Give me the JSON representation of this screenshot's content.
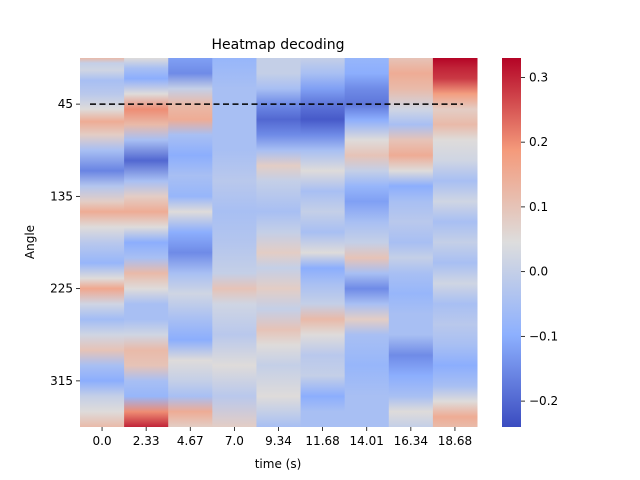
{
  "chart_data": {
    "type": "heatmap",
    "title": "Heatmap decoding",
    "xlabel": "time (s)",
    "ylabel": "Angle",
    "x_ticks": [
      "0.0",
      "2.33",
      "4.67",
      "7.0",
      "9.34",
      "11.68",
      "14.01",
      "16.34",
      "18.68"
    ],
    "y_range": [
      0,
      360
    ],
    "y_ticks": [
      45,
      135,
      225,
      315
    ],
    "y_tick_labels": [
      "45",
      "135",
      "225",
      "315"
    ],
    "hline": {
      "y": 45,
      "style": "dashed",
      "color": "#000000"
    },
    "colormap": "coolwarm",
    "color_range": [
      -0.24,
      0.33
    ],
    "colorbar_ticks": [
      -0.2,
      -0.1,
      0.0,
      0.1,
      0.2,
      0.3
    ],
    "colorbar_tick_labels": [
      "−0.2",
      "−0.1",
      "0.0",
      "0.1",
      "0.2",
      "0.3"
    ],
    "columns": [
      {
        "x": "0.0",
        "profile": [
          [
            0,
            0.12
          ],
          [
            5,
            0.0
          ],
          [
            12,
            0.02
          ],
          [
            22,
            -0.05
          ],
          [
            35,
            -0.02
          ],
          [
            50,
            0.05
          ],
          [
            62,
            0.15
          ],
          [
            75,
            0.08
          ],
          [
            90,
            -0.05
          ],
          [
            110,
            -0.16
          ],
          [
            125,
            -0.03
          ],
          [
            140,
            0.08
          ],
          [
            150,
            0.15
          ],
          [
            165,
            0.05
          ],
          [
            180,
            -0.02
          ],
          [
            200,
            -0.08
          ],
          [
            215,
            0.05
          ],
          [
            225,
            0.16
          ],
          [
            240,
            0.02
          ],
          [
            255,
            -0.06
          ],
          [
            270,
            0.02
          ],
          [
            285,
            0.1
          ],
          [
            300,
            -0.05
          ],
          [
            315,
            -0.1
          ],
          [
            330,
            0.0
          ],
          [
            345,
            0.05
          ],
          [
            360,
            0.12
          ]
        ]
      },
      {
        "x": "2.33",
        "profile": [
          [
            0,
            0.05
          ],
          [
            10,
            -0.05
          ],
          [
            20,
            -0.1
          ],
          [
            35,
            0.05
          ],
          [
            50,
            0.2
          ],
          [
            65,
            0.12
          ],
          [
            80,
            -0.05
          ],
          [
            100,
            -0.2
          ],
          [
            120,
            -0.05
          ],
          [
            135,
            0.08
          ],
          [
            150,
            0.15
          ],
          [
            165,
            0.05
          ],
          [
            180,
            -0.1
          ],
          [
            195,
            -0.05
          ],
          [
            210,
            0.12
          ],
          [
            225,
            0.05
          ],
          [
            240,
            -0.05
          ],
          [
            255,
            -0.05
          ],
          [
            270,
            0.02
          ],
          [
            285,
            0.12
          ],
          [
            300,
            0.1
          ],
          [
            315,
            -0.05
          ],
          [
            330,
            -0.08
          ],
          [
            345,
            0.2
          ],
          [
            360,
            0.3
          ]
        ]
      },
      {
        "x": "4.67",
        "profile": [
          [
            0,
            -0.12
          ],
          [
            15,
            -0.15
          ],
          [
            30,
            0.0
          ],
          [
            45,
            0.12
          ],
          [
            60,
            0.15
          ],
          [
            75,
            -0.05
          ],
          [
            95,
            -0.1
          ],
          [
            115,
            -0.05
          ],
          [
            135,
            -0.08
          ],
          [
            150,
            0.05
          ],
          [
            170,
            -0.1
          ],
          [
            190,
            -0.15
          ],
          [
            210,
            -0.05
          ],
          [
            230,
            0.02
          ],
          [
            255,
            -0.05
          ],
          [
            275,
            -0.1
          ],
          [
            295,
            0.05
          ],
          [
            315,
            0.0
          ],
          [
            330,
            -0.05
          ],
          [
            345,
            0.15
          ],
          [
            360,
            0.08
          ]
        ]
      },
      {
        "x": "7.0",
        "profile": [
          [
            0,
            -0.08
          ],
          [
            30,
            -0.05
          ],
          [
            60,
            -0.05
          ],
          [
            90,
            -0.05
          ],
          [
            120,
            -0.02
          ],
          [
            150,
            -0.05
          ],
          [
            180,
            -0.03
          ],
          [
            210,
            0.0
          ],
          [
            225,
            0.1
          ],
          [
            240,
            0.02
          ],
          [
            270,
            -0.02
          ],
          [
            300,
            0.05
          ],
          [
            330,
            -0.02
          ],
          [
            360,
            0.08
          ]
        ]
      },
      {
        "x": "9.34",
        "profile": [
          [
            0,
            0.0
          ],
          [
            15,
            0.0
          ],
          [
            30,
            -0.05
          ],
          [
            45,
            -0.15
          ],
          [
            60,
            -0.2
          ],
          [
            75,
            -0.15
          ],
          [
            90,
            -0.05
          ],
          [
            105,
            0.08
          ],
          [
            120,
            0.0
          ],
          [
            150,
            -0.05
          ],
          [
            170,
            0.0
          ],
          [
            190,
            0.08
          ],
          [
            205,
            0.0
          ],
          [
            225,
            0.08
          ],
          [
            245,
            0.0
          ],
          [
            265,
            0.1
          ],
          [
            280,
            0.05
          ],
          [
            300,
            0.0
          ],
          [
            330,
            0.05
          ],
          [
            345,
            0.0
          ],
          [
            360,
            -0.05
          ]
        ]
      },
      {
        "x": "11.68",
        "profile": [
          [
            0,
            0.0
          ],
          [
            15,
            -0.05
          ],
          [
            30,
            -0.12
          ],
          [
            45,
            -0.18
          ],
          [
            60,
            -0.22
          ],
          [
            75,
            -0.15
          ],
          [
            90,
            -0.05
          ],
          [
            110,
            0.05
          ],
          [
            130,
            -0.05
          ],
          [
            150,
            0.0
          ],
          [
            170,
            -0.05
          ],
          [
            190,
            0.05
          ],
          [
            205,
            -0.1
          ],
          [
            220,
            -0.05
          ],
          [
            240,
            0.0
          ],
          [
            255,
            0.12
          ],
          [
            270,
            0.05
          ],
          [
            290,
            -0.02
          ],
          [
            310,
            0.0
          ],
          [
            330,
            -0.1
          ],
          [
            345,
            -0.05
          ],
          [
            360,
            -0.05
          ]
        ]
      },
      {
        "x": "14.01",
        "profile": [
          [
            0,
            -0.08
          ],
          [
            15,
            -0.1
          ],
          [
            30,
            -0.15
          ],
          [
            45,
            -0.18
          ],
          [
            60,
            -0.1
          ],
          [
            80,
            0.05
          ],
          [
            95,
            0.1
          ],
          [
            110,
            0.0
          ],
          [
            125,
            -0.08
          ],
          [
            140,
            -0.12
          ],
          [
            160,
            -0.05
          ],
          [
            180,
            0.0
          ],
          [
            195,
            0.1
          ],
          [
            210,
            -0.05
          ],
          [
            225,
            -0.15
          ],
          [
            240,
            -0.05
          ],
          [
            255,
            0.08
          ],
          [
            270,
            -0.05
          ],
          [
            300,
            -0.08
          ],
          [
            330,
            -0.05
          ],
          [
            360,
            -0.05
          ]
        ]
      },
      {
        "x": "16.34",
        "profile": [
          [
            0,
            0.1
          ],
          [
            15,
            0.15
          ],
          [
            30,
            0.12
          ],
          [
            50,
            0.02
          ],
          [
            65,
            -0.05
          ],
          [
            80,
            0.1
          ],
          [
            95,
            0.15
          ],
          [
            110,
            0.05
          ],
          [
            125,
            -0.1
          ],
          [
            140,
            -0.05
          ],
          [
            160,
            -0.02
          ],
          [
            180,
            -0.05
          ],
          [
            195,
            0.0
          ],
          [
            210,
            -0.05
          ],
          [
            230,
            -0.08
          ],
          [
            250,
            -0.05
          ],
          [
            270,
            -0.05
          ],
          [
            290,
            -0.15
          ],
          [
            310,
            -0.1
          ],
          [
            330,
            -0.05
          ],
          [
            345,
            0.05
          ],
          [
            360,
            0.0
          ]
        ]
      },
      {
        "x": "18.68",
        "profile": [
          [
            0,
            0.35
          ],
          [
            10,
            0.3
          ],
          [
            20,
            0.28
          ],
          [
            35,
            0.18
          ],
          [
            50,
            0.08
          ],
          [
            65,
            0.12
          ],
          [
            80,
            0.05
          ],
          [
            100,
            0.02
          ],
          [
            120,
            -0.05
          ],
          [
            140,
            0.02
          ],
          [
            160,
            -0.05
          ],
          [
            180,
            0.0
          ],
          [
            200,
            -0.05
          ],
          [
            220,
            0.02
          ],
          [
            240,
            -0.05
          ],
          [
            260,
            -0.02
          ],
          [
            280,
            -0.05
          ],
          [
            300,
            -0.1
          ],
          [
            320,
            -0.05
          ],
          [
            335,
            0.05
          ],
          [
            350,
            0.15
          ],
          [
            360,
            0.12
          ]
        ]
      }
    ]
  }
}
